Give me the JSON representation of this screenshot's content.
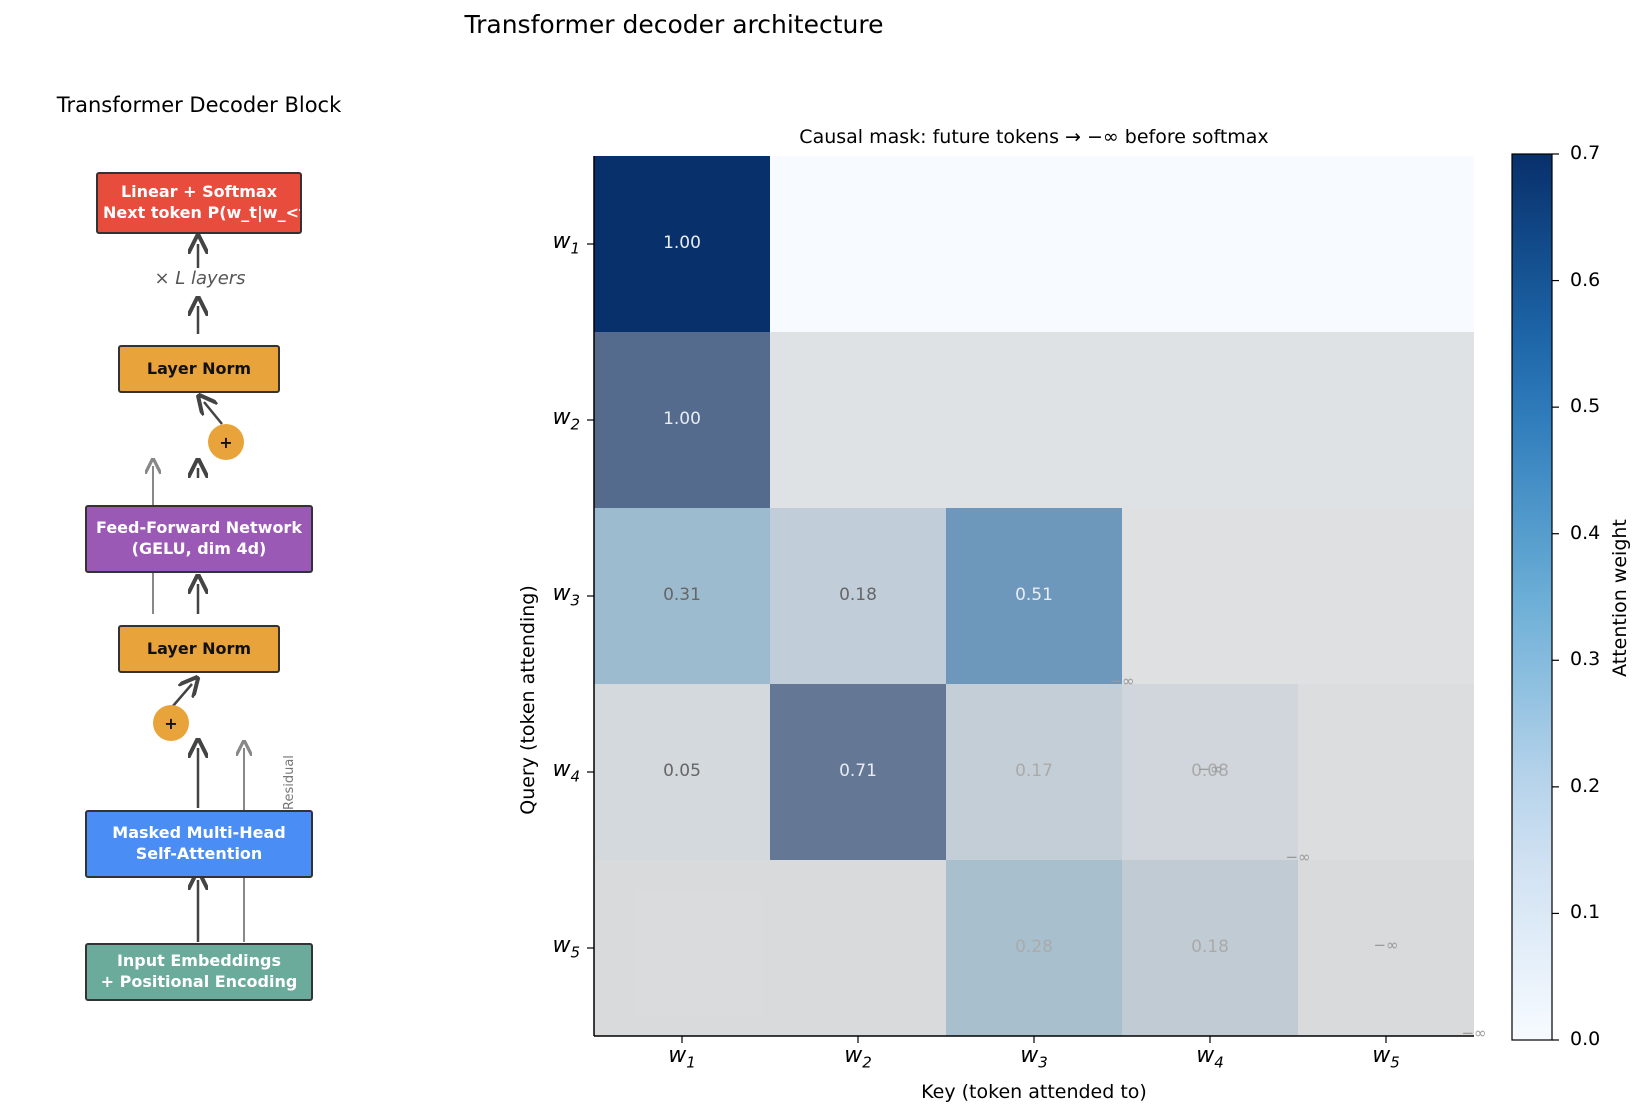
{
  "title": "Transformer decoder architecture",
  "block_diagram": {
    "title": "Transformer Decoder Block",
    "linear_softmax": {
      "line1": "Linear + Softmax",
      "line2": "→ Next token P(w_t|w_<t)"
    },
    "layers_label": "× L layers",
    "layer_norm_top": "Layer Norm",
    "plus_top": "+",
    "ffn": {
      "line1": "Feed-Forward Network",
      "line2": "(GELU, dim 4d)"
    },
    "layer_norm_bottom": "Layer Norm",
    "plus_bottom": "+",
    "attention": {
      "line1": "Masked Multi-Head",
      "line2": "Self-Attention"
    },
    "embeddings": {
      "line1": "Input Embeddings",
      "line2": "+ Positional Encoding"
    },
    "residual_label": "Residual",
    "colors": {
      "linear_softmax": "#e84c3d",
      "layer_norm": "#e8a33a",
      "ffn": "#9b59b6",
      "attention": "#4a8ef5",
      "embeddings": "#6aab9b",
      "plus": "#e8a33a"
    }
  },
  "chart_data": {
    "type": "heatmap",
    "title": "Causal mask: future tokens → −∞ before softmax",
    "xlabel": "Key (token attended to)",
    "ylabel": "Query (token attending)",
    "x_ticks": [
      "w1",
      "w2",
      "w3",
      "w4",
      "w5"
    ],
    "y_ticks": [
      "w1",
      "w2",
      "w3",
      "w4",
      "w5"
    ],
    "values": [
      [
        1.0,
        null,
        null,
        null,
        null
      ],
      [
        1.0,
        null,
        null,
        null,
        null
      ],
      [
        0.31,
        0.18,
        0.51,
        null,
        null
      ],
      [
        0.05,
        0.71,
        0.17,
        0.08,
        null
      ],
      [
        null,
        null,
        0.28,
        0.18,
        null
      ]
    ],
    "mask_label": "−∞",
    "colorbar": {
      "label": "Attention weight",
      "ticks": [
        "0.0",
        "0.1",
        "0.2",
        "0.3",
        "0.4",
        "0.5",
        "0.6",
        "0.7"
      ],
      "range": [
        0.0,
        0.7
      ],
      "colormap": "Blues"
    }
  }
}
